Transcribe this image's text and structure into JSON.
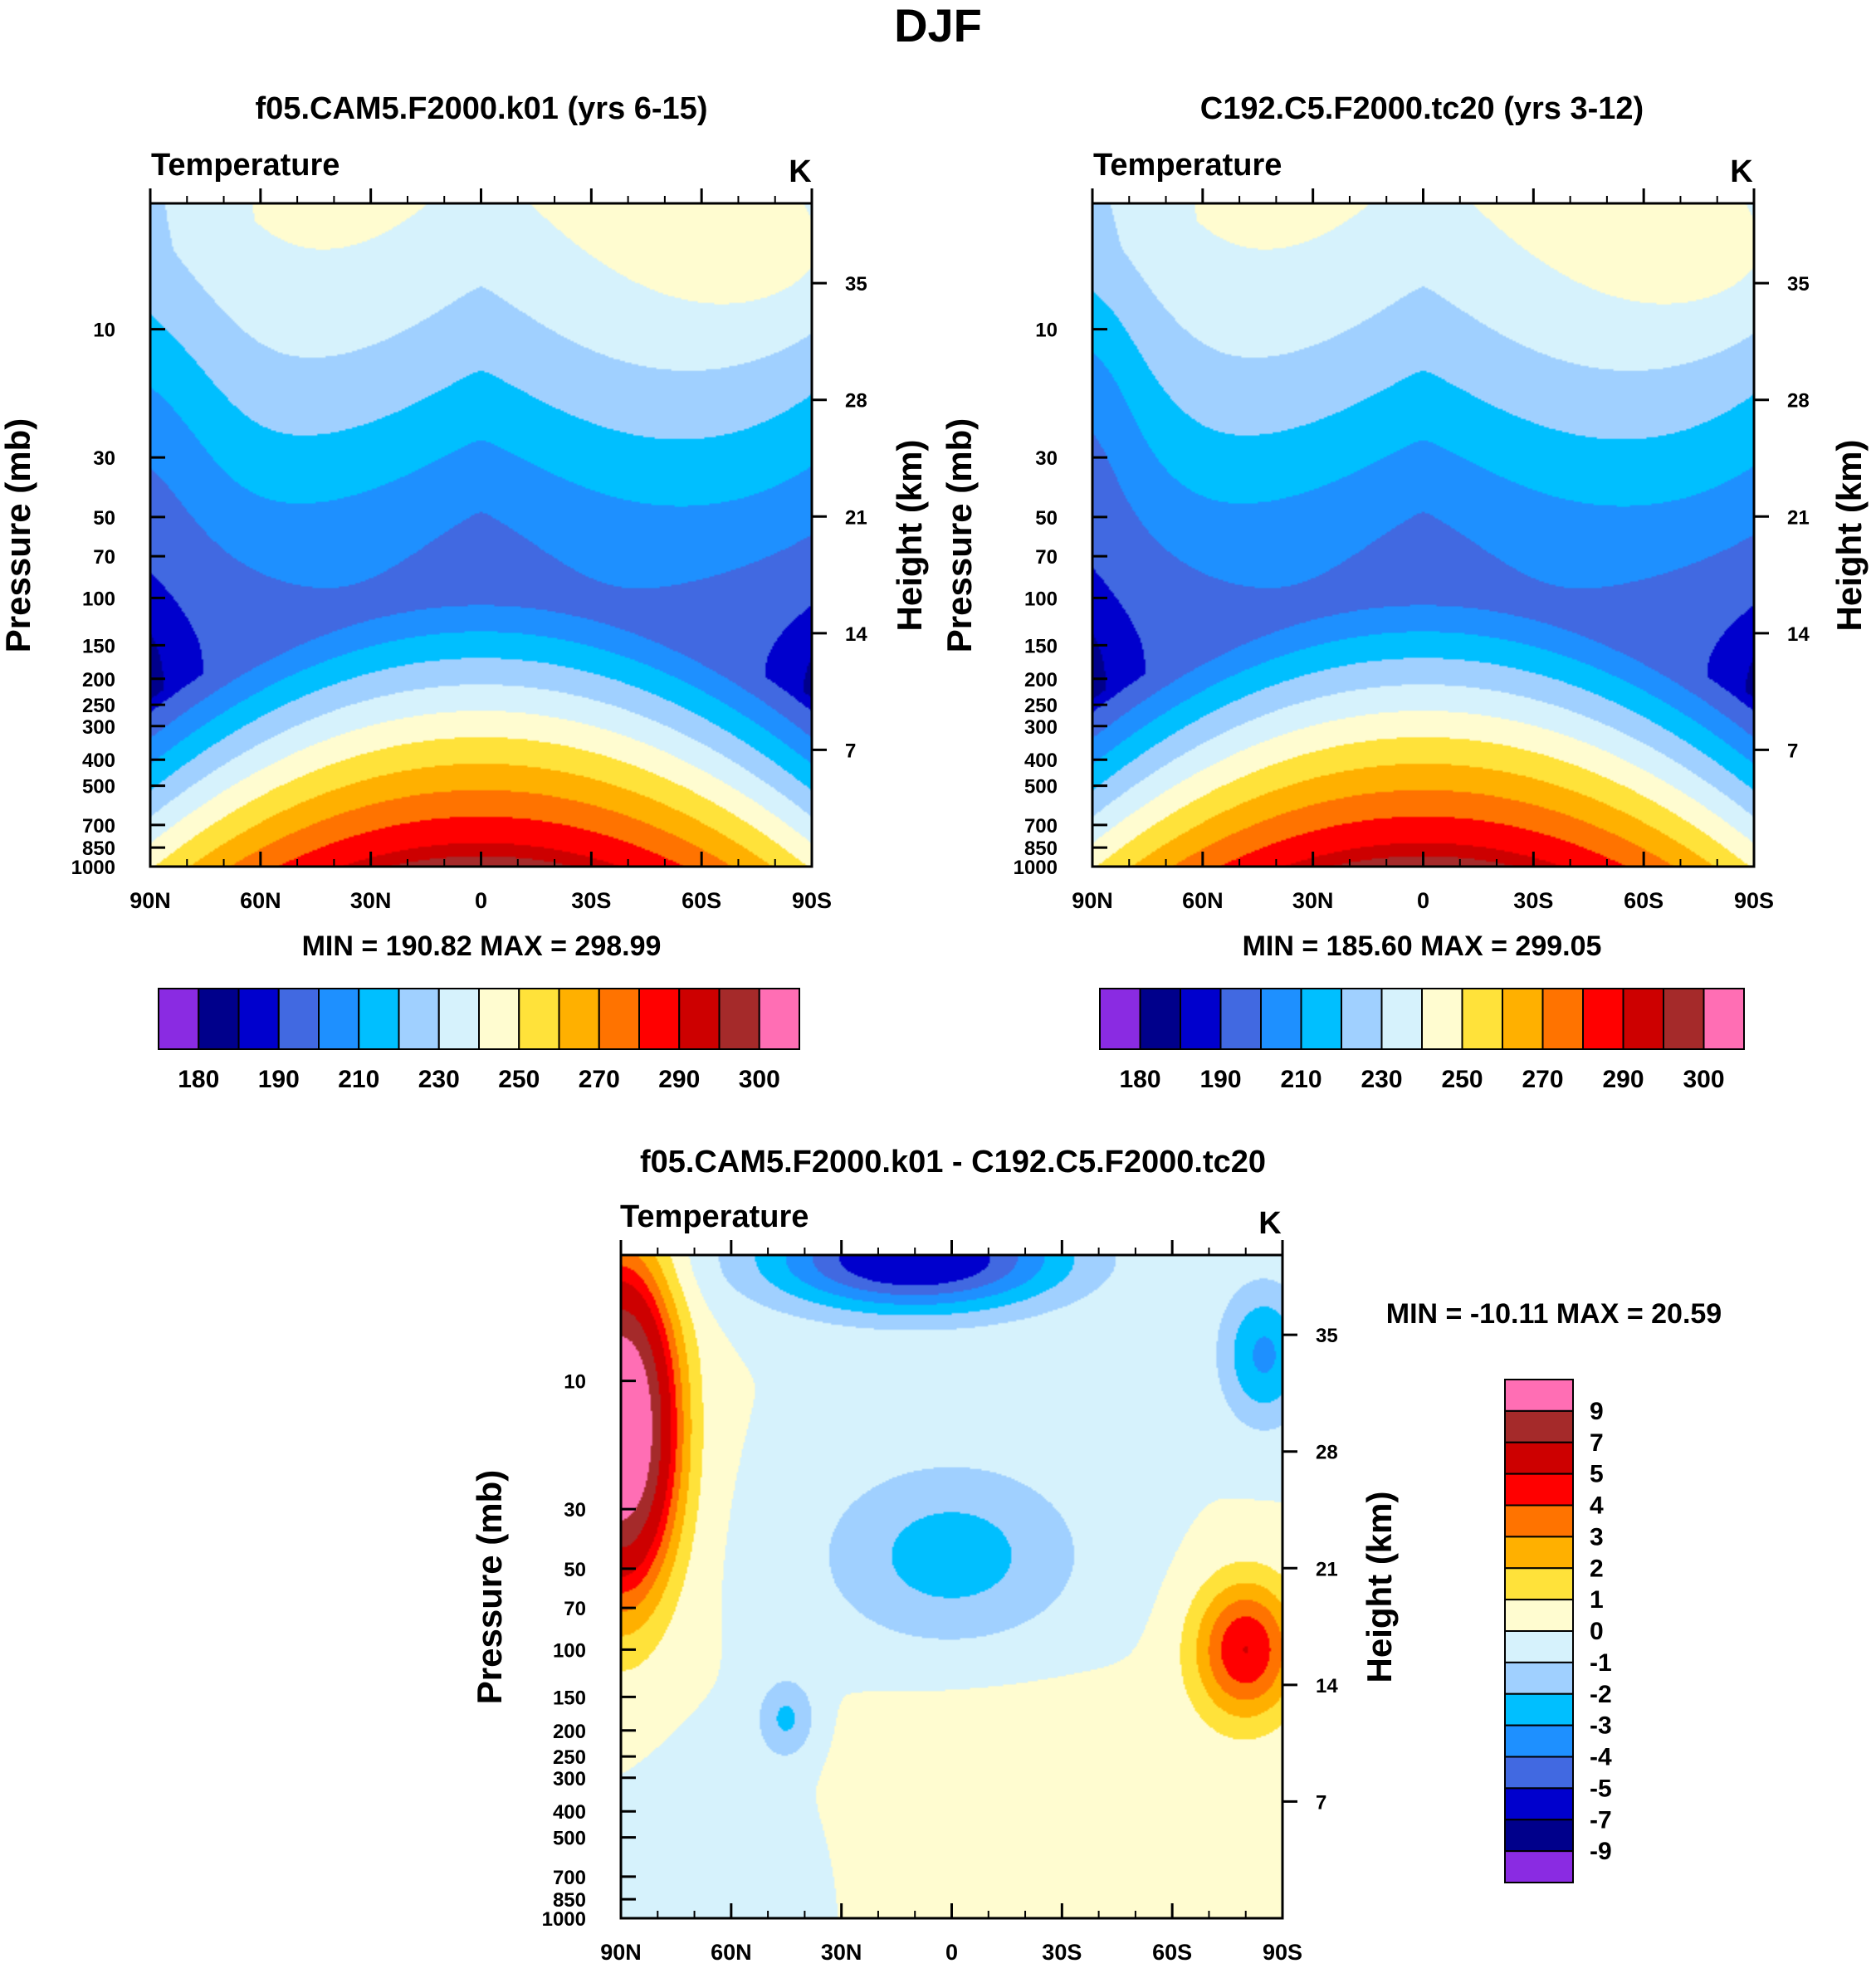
{
  "figure_title": "DJF",
  "colors": {
    "temperature_palette": [
      "#8a2be2",
      "#00008b",
      "#0000cd",
      "#4169e1",
      "#1e90ff",
      "#00bfff",
      "#a0d0ff",
      "#d6f2fc",
      "#fffcd0",
      "#ffe23a",
      "#ffb000",
      "#ff7300",
      "#ff0000",
      "#cd0000",
      "#a52a2a",
      "#ff6eb4"
    ],
    "difference_palette": [
      "#8a2be2",
      "#00008b",
      "#0000cd",
      "#4169e1",
      "#1e90ff",
      "#00bfff",
      "#a0d0ff",
      "#d6f2fc",
      "#fffcd0",
      "#ffe23a",
      "#ffb000",
      "#ff7300",
      "#ff0000",
      "#cd0000",
      "#a52a2a",
      "#ff6eb4"
    ]
  },
  "chart_data": [
    {
      "type": "heatmap",
      "id": "panel1",
      "title": "f05.CAM5.F2000.k01 (yrs 6-15)",
      "variable_label": "Temperature",
      "units": "K",
      "xlabel": "",
      "ylabel": "Pressure (mb)",
      "ylabel_right": "Height (km)",
      "x_ticks": [
        "90N",
        "60N",
        "30N",
        "0",
        "30S",
        "60S",
        "90S"
      ],
      "y_ticks": [
        "10",
        "30",
        "50",
        "70",
        "100",
        "150",
        "200",
        "250",
        "300",
        "400",
        "500",
        "700",
        "850",
        "1000"
      ],
      "height_ticks": [
        "35",
        "28",
        "21",
        "14",
        "7"
      ],
      "stats": "MIN = 190.82  MAX = 298.99",
      "colorbar_labels": [
        "180",
        "190",
        "210",
        "230",
        "250",
        "270",
        "290",
        "300"
      ],
      "levels": [
        180,
        185,
        190,
        200,
        210,
        220,
        230,
        240,
        250,
        260,
        270,
        280,
        290,
        295,
        300
      ],
      "field_shift": 0,
      "ylim_mb": [
        1000,
        3.4
      ]
    },
    {
      "type": "heatmap",
      "id": "panel2",
      "title": "C192.C5.F2000.tc20 (yrs 3-12)",
      "variable_label": "Temperature",
      "units": "K",
      "xlabel": "",
      "ylabel": "Pressure (mb)",
      "ylabel_right": "Height (km)",
      "x_ticks": [
        "90N",
        "60N",
        "30N",
        "0",
        "30S",
        "60S",
        "90S"
      ],
      "y_ticks": [
        "10",
        "30",
        "50",
        "70",
        "100",
        "150",
        "200",
        "250",
        "300",
        "400",
        "500",
        "700",
        "850",
        "1000"
      ],
      "height_ticks": [
        "35",
        "28",
        "21",
        "14",
        "7"
      ],
      "stats": "MIN = 185.60  MAX = 299.05",
      "colorbar_labels": [
        "180",
        "190",
        "210",
        "230",
        "250",
        "270",
        "290",
        "300"
      ],
      "levels": [
        180,
        185,
        190,
        200,
        210,
        220,
        230,
        240,
        250,
        260,
        270,
        280,
        290,
        295,
        300
      ],
      "field_shift": -5,
      "ylim_mb": [
        1000,
        3.4
      ]
    },
    {
      "type": "heatmap",
      "id": "panel3",
      "title": "f05.CAM5.F2000.k01 - C192.C5.F2000.tc20",
      "variable_label": "Temperature",
      "units": "K",
      "xlabel": "",
      "ylabel": "Pressure (mb)",
      "ylabel_right": "Height (km)",
      "x_ticks": [
        "90N",
        "60N",
        "30N",
        "0",
        "30S",
        "60S",
        "90S"
      ],
      "y_ticks": [
        "10",
        "30",
        "50",
        "70",
        "100",
        "150",
        "200",
        "250",
        "300",
        "400",
        "500",
        "700",
        "850",
        "1000"
      ],
      "height_ticks": [
        "35",
        "28",
        "21",
        "14",
        "7"
      ],
      "stats": "MIN = -10.11  MAX =  20.59",
      "colorbar_labels": [
        "9",
        "7",
        "5",
        "4",
        "3",
        "2",
        "1",
        "0",
        "-1",
        "-2",
        "-3",
        "-4",
        "-5",
        "-7",
        "-9"
      ],
      "levels": [
        -9,
        -7,
        -5,
        -4,
        -3,
        -2,
        -1,
        0,
        1,
        2,
        3,
        4,
        5,
        7,
        9
      ],
      "ylim_mb": [
        1000,
        3.4
      ]
    }
  ]
}
